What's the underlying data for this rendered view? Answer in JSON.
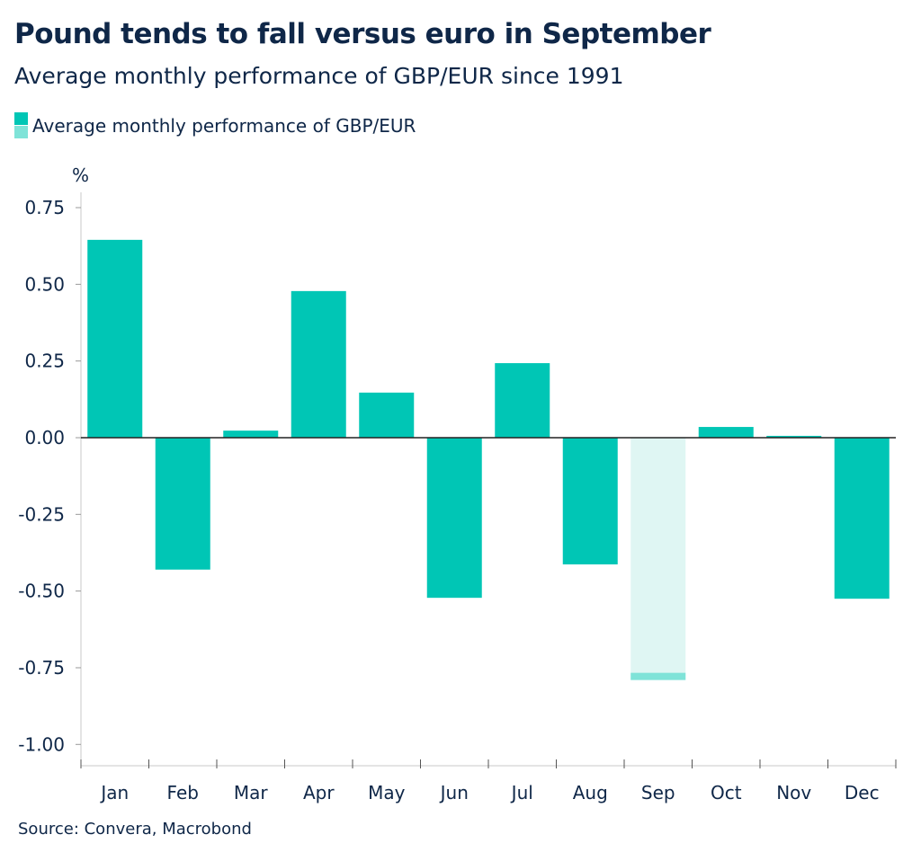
{
  "title": "Pound tends to fall versus euro in September",
  "subtitle": "Average monthly performance of GBP/EUR since 1991",
  "source": "Source: Convera, Macrobond",
  "colors": {
    "bar": "#00c6b5",
    "highlight_fill": "#dff6f3",
    "highlight_edge": "#7fe3d8",
    "text": "#0f2748"
  },
  "chart_data": {
    "type": "bar",
    "title": "Pound tends to fall versus euro in September",
    "ylabel": "%",
    "ylim": [
      -1.0,
      0.8
    ],
    "yticks": [
      "0.75",
      "0.50",
      "0.25",
      "0.00",
      "-0.25",
      "-0.50",
      "-0.75",
      "-1.00"
    ],
    "ytick_values": [
      0.75,
      0.5,
      0.25,
      0,
      -0.25,
      -0.5,
      -0.75,
      -1.0
    ],
    "legend": {
      "position": "top-left",
      "entries": [
        "Average monthly performance of GBP/EUR"
      ]
    },
    "grid": false,
    "categories": [
      "Jan",
      "Feb",
      "Mar",
      "Apr",
      "May",
      "Jun",
      "Jul",
      "Aug",
      "Sep",
      "Oct",
      "Nov",
      "Dec"
    ],
    "series": [
      {
        "name": "Average monthly performance of GBP/EUR",
        "values": [
          0.645,
          -0.43,
          0.023,
          0.478,
          0.147,
          -0.522,
          0.243,
          -0.413,
          -0.79,
          0.035,
          0.006,
          -0.525
        ]
      }
    ],
    "highlighted": "Sep"
  }
}
